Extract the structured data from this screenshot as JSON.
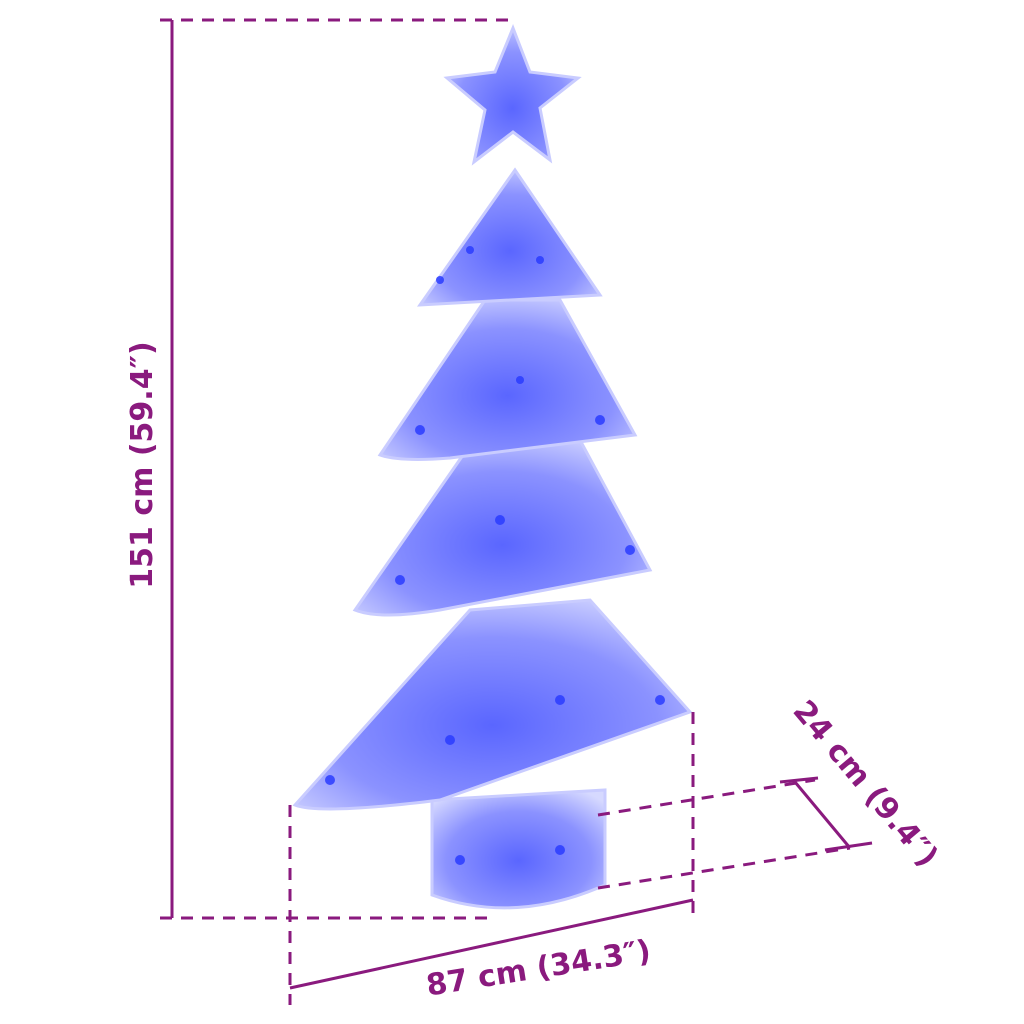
{
  "dimensions": {
    "height": "151 cm (59.4″)",
    "width": "87 cm (34.3″)",
    "depth": "24 cm (9.4″)"
  },
  "colors": {
    "dimension_lines": "#8a1a7e",
    "led_light": "#2a3cff",
    "frame": "#c9ccff"
  }
}
